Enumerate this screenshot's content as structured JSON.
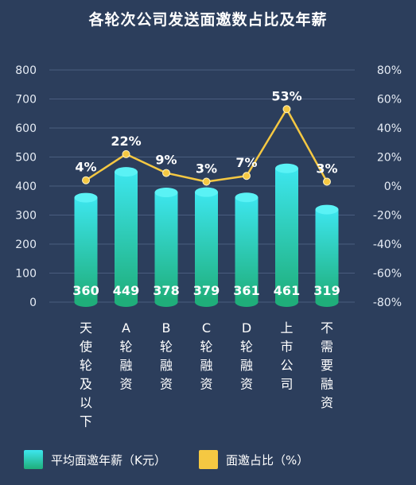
{
  "chart_data": {
    "type": "bar+line",
    "title": "各轮次公司发送面邀数占比及年薪",
    "categories": [
      "天使轮及以下",
      "A轮融资",
      "B轮融资",
      "C轮融资",
      "D轮融资",
      "上市公司",
      "不需要融资"
    ],
    "series": [
      {
        "name": "平均面邀年薪（K元）",
        "type": "bar",
        "axis": "left",
        "values": [
          360,
          449,
          378,
          379,
          361,
          461,
          319
        ],
        "value_labels": [
          "360",
          "449",
          "378",
          "379",
          "361",
          "461",
          "319"
        ],
        "color_top": "#3de6ee",
        "color_bottom": "#1fae7a"
      },
      {
        "name": "面邀占比（%）",
        "type": "line",
        "axis": "right",
        "values": [
          4,
          22,
          9,
          3,
          7,
          53,
          3
        ],
        "value_labels": [
          "4%",
          "22%",
          "9%",
          "3%",
          "7%",
          "53%",
          "3%"
        ],
        "color": "#f5c842"
      }
    ],
    "left_axis": {
      "ylim": [
        0,
        800
      ],
      "ticks": [
        "0",
        "100",
        "200",
        "300",
        "400",
        "500",
        "600",
        "700",
        "800"
      ]
    },
    "right_axis": {
      "ylim": [
        -80,
        80
      ],
      "ticks": [
        "-80%",
        "-60%",
        "-40%",
        "-20%",
        "0%",
        "20%",
        "40%",
        "60%",
        "80%"
      ]
    },
    "grid": true,
    "legend_position": "bottom",
    "legend": [
      {
        "label": "平均面邀年薪（K元）",
        "color": "#2ed3c8"
      },
      {
        "label": "面邀占比（%）",
        "color": "#f5c842"
      }
    ]
  }
}
